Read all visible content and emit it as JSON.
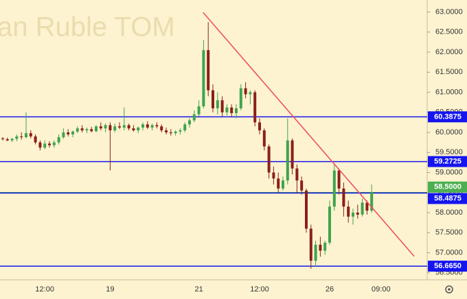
{
  "chart_data": {
    "type": "candlestick",
    "watermark": "an Ruble TOM",
    "up_color": "#3fa34d",
    "down_color": "#8b1f1a",
    "background": "#fdf3d0",
    "grid": false,
    "ylim": [
      56.325,
      63.3
    ],
    "yticks": [
      {
        "value": 56.5,
        "label": "56.5000"
      },
      {
        "value": 57.0,
        "label": "57.0000"
      },
      {
        "value": 57.5,
        "label": "57.5000"
      },
      {
        "value": 58.0,
        "label": "58.0000"
      },
      {
        "value": 58.5,
        "label": "58.5000"
      },
      {
        "value": 59.0,
        "label": "59.0000"
      },
      {
        "value": 59.5,
        "label": "59.5000"
      },
      {
        "value": 60.0,
        "label": "60.0000"
      },
      {
        "value": 60.5,
        "label": "60.5000"
      },
      {
        "value": 61.0,
        "label": "61.0000"
      },
      {
        "value": 61.5,
        "label": "61.5000"
      },
      {
        "value": 62.0,
        "label": "62.0000"
      },
      {
        "value": 62.5,
        "label": "62.5000"
      },
      {
        "value": 63.0,
        "label": "63.0000"
      }
    ],
    "categories": [
      null,
      null,
      null,
      null,
      null,
      null,
      null,
      null,
      null,
      "12:00",
      null,
      null,
      null,
      null,
      null,
      null,
      null,
      null,
      null,
      null,
      null,
      null,
      null,
      "19",
      null,
      null,
      null,
      null,
      null,
      null,
      null,
      null,
      null,
      null,
      null,
      null,
      null,
      null,
      null,
      null,
      null,
      null,
      "21",
      null,
      null,
      null,
      null,
      null,
      null,
      null,
      null,
      null,
      null,
      null,
      null,
      "12:00",
      null,
      null,
      null,
      null,
      null,
      null,
      null,
      null,
      null,
      null,
      null,
      null,
      null,
      null,
      "26",
      null,
      null,
      null,
      null,
      null,
      null,
      null,
      null,
      null,
      null,
      "09:00",
      null,
      null,
      null,
      null,
      null,
      null,
      null,
      null,
      null,
      null
    ],
    "open": [
      59.85,
      59.83,
      59.8,
      59.84,
      59.9,
      59.88,
      59.98,
      59.9,
      59.75,
      59.62,
      59.72,
      59.68,
      59.75,
      59.88,
      60.0,
      59.95,
      60.02,
      60.1,
      60.05,
      60.08,
      60.03,
      60.15,
      60.1,
      60.18,
      60.05,
      60.15,
      60.12,
      60.18,
      60.1,
      60.05,
      60.12,
      60.2,
      60.12,
      60.18,
      60.15,
      60.05,
      60.0,
      59.98,
      60.02,
      60.05,
      60.2,
      60.3,
      60.45,
      60.65,
      62.05,
      61.05,
      60.6,
      60.8,
      60.5,
      60.62,
      60.48,
      60.6,
      61.1,
      60.95,
      61.0,
      60.25,
      60.05,
      59.65,
      59.0,
      58.85,
      58.6,
      58.8,
      59.8,
      59.1,
      58.8,
      58.55,
      57.6,
      56.8,
      57.2,
      57.05,
      57.25,
      58.15,
      59.05,
      58.6,
      58.15,
      57.9,
      58.0,
      57.95,
      58.25,
      58.05,
      null,
      null,
      null,
      null,
      null,
      null,
      null,
      null,
      null,
      null,
      null,
      null
    ],
    "high": [
      59.88,
      59.87,
      59.86,
      59.95,
      60.0,
      60.5,
      60.05,
      59.95,
      59.8,
      59.8,
      59.78,
      59.8,
      59.95,
      60.1,
      60.08,
      60.05,
      60.15,
      60.18,
      60.12,
      60.14,
      60.18,
      60.25,
      60.22,
      60.25,
      60.22,
      60.25,
      60.62,
      60.22,
      60.18,
      60.15,
      60.25,
      60.28,
      60.22,
      60.25,
      60.2,
      60.12,
      60.08,
      60.05,
      60.1,
      60.25,
      60.35,
      60.55,
      60.8,
      62.3,
      62.75,
      61.2,
      61.0,
      60.9,
      60.7,
      60.7,
      60.7,
      61.2,
      61.25,
      61.05,
      61.05,
      60.35,
      60.1,
      59.7,
      59.15,
      59.0,
      58.9,
      60.35,
      59.85,
      59.2,
      58.9,
      58.6,
      57.7,
      57.3,
      57.4,
      57.3,
      58.3,
      59.2,
      59.1,
      58.75,
      58.3,
      58.1,
      58.2,
      58.35,
      58.3,
      58.7,
      null,
      null,
      null,
      null,
      null,
      null,
      null,
      null,
      null,
      null,
      null,
      null
    ],
    "low": [
      59.8,
      59.78,
      59.76,
      59.78,
      59.82,
      59.85,
      59.85,
      59.7,
      59.55,
      59.58,
      59.62,
      59.62,
      59.7,
      59.84,
      59.9,
      59.88,
      59.98,
      60.0,
      59.98,
      60.0,
      60.0,
      60.05,
      60.0,
      59.05,
      60.0,
      60.08,
      60.05,
      60.05,
      60.02,
      59.98,
      60.05,
      60.08,
      60.05,
      60.1,
      60.0,
      59.95,
      59.92,
      59.92,
      59.95,
      60.0,
      60.12,
      60.25,
      60.4,
      60.6,
      60.9,
      60.5,
      60.45,
      60.4,
      60.42,
      60.4,
      60.35,
      60.55,
      60.85,
      60.7,
      60.15,
      59.95,
      59.55,
      58.85,
      58.7,
      58.5,
      58.55,
      58.7,
      58.95,
      58.5,
      58.45,
      57.5,
      56.6,
      56.65,
      56.9,
      56.95,
      57.2,
      58.05,
      58.45,
      57.9,
      57.75,
      57.7,
      57.85,
      57.9,
      57.95,
      58.0,
      null,
      null,
      null,
      null,
      null,
      null,
      null,
      null,
      null,
      null,
      null,
      null
    ],
    "close": [
      59.83,
      59.8,
      59.84,
      59.9,
      59.88,
      59.98,
      59.9,
      59.75,
      59.62,
      59.72,
      59.68,
      59.75,
      59.88,
      60.0,
      59.95,
      60.02,
      60.1,
      60.05,
      60.08,
      60.03,
      60.15,
      60.1,
      60.18,
      60.05,
      60.15,
      60.12,
      60.18,
      60.1,
      60.05,
      60.12,
      60.2,
      60.12,
      60.18,
      60.15,
      60.05,
      60.0,
      59.98,
      60.02,
      60.05,
      60.2,
      60.3,
      60.45,
      60.65,
      62.05,
      61.05,
      60.6,
      60.8,
      60.5,
      60.62,
      60.48,
      60.6,
      61.1,
      60.95,
      61.0,
      60.25,
      60.05,
      59.65,
      59.0,
      58.85,
      58.6,
      58.8,
      59.8,
      59.1,
      58.8,
      58.55,
      57.6,
      56.8,
      57.2,
      57.05,
      57.25,
      58.15,
      59.05,
      58.6,
      58.15,
      57.9,
      58.0,
      57.95,
      58.25,
      58.05,
      58.5,
      null,
      null,
      null,
      null,
      null,
      null,
      null,
      null,
      null,
      null,
      null,
      null
    ],
    "levels": [
      {
        "value": 60.3875,
        "label": "60.3875",
        "color": "#1515f0"
      },
      {
        "value": 59.2725,
        "label": "59.2725",
        "color": "#1515f0"
      },
      {
        "value": 58.5,
        "label": "58.5000",
        "color": "#4caf50"
      },
      {
        "value": 58.4875,
        "label": "58.4875",
        "color": "#1515f0"
      },
      {
        "value": 56.665,
        "label": "56.6650",
        "color": "#1515f0"
      }
    ],
    "trendline": {
      "color": "#f0506a",
      "x": [
        42.9,
        88.1
      ],
      "y": [
        62.99,
        56.91
      ]
    }
  }
}
